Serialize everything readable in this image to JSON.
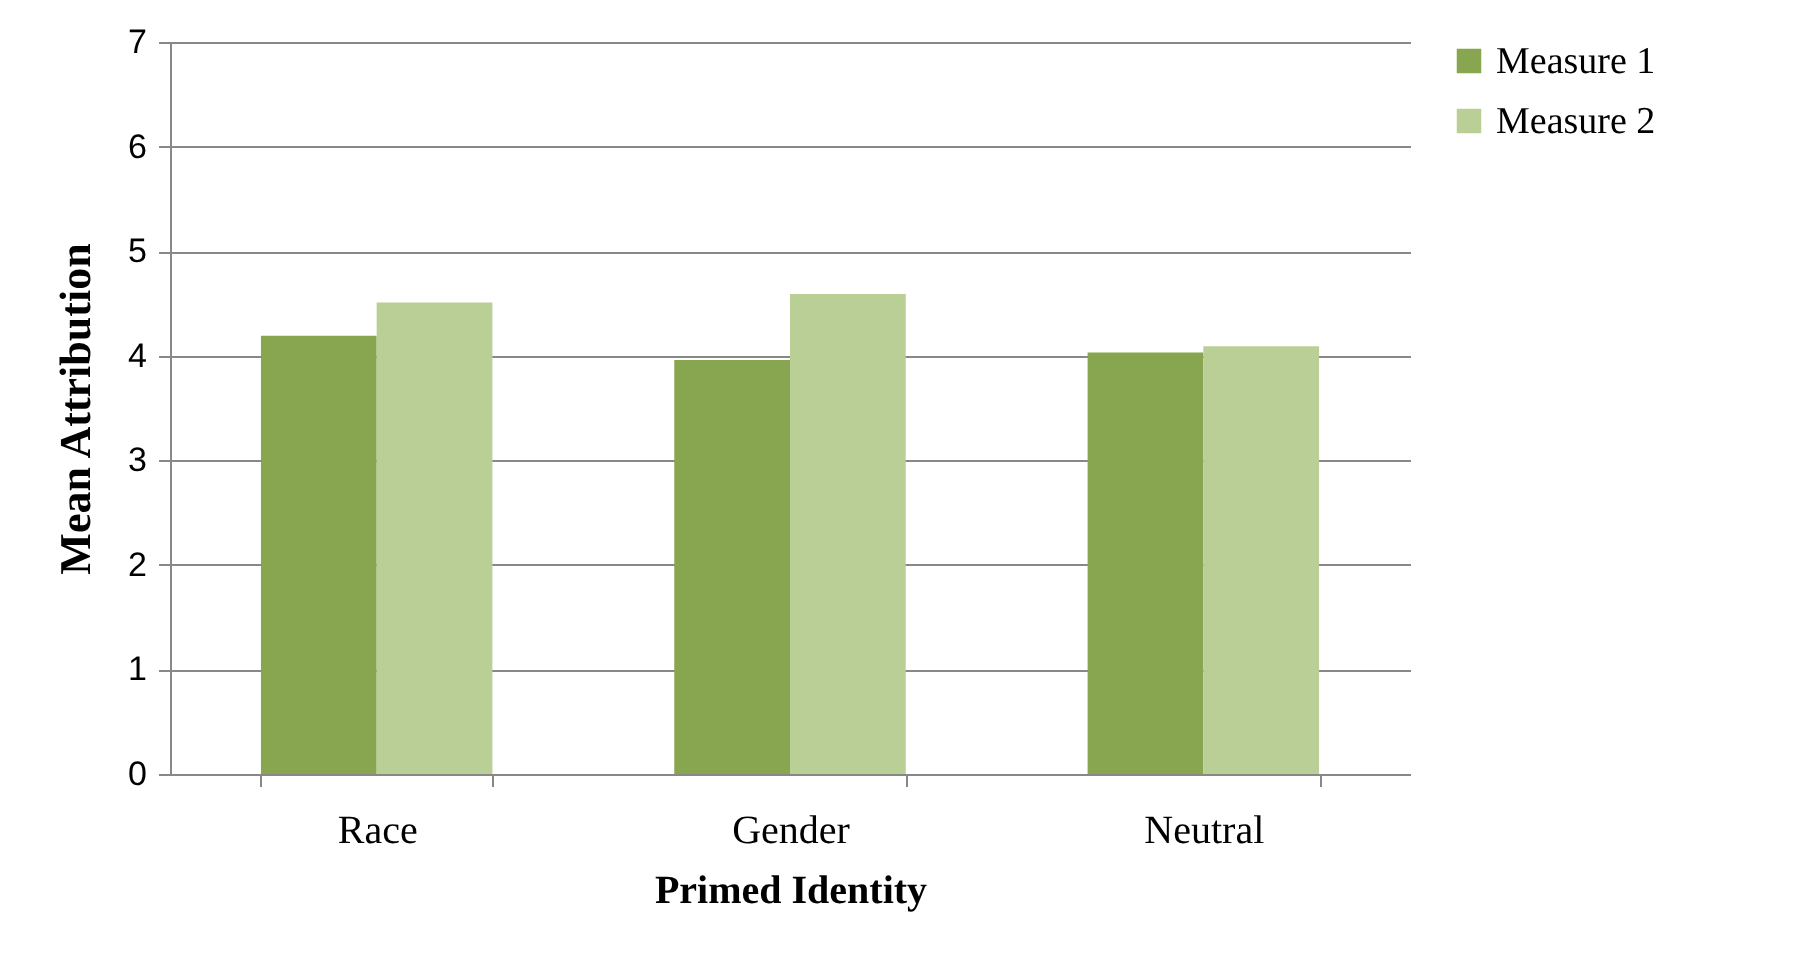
{
  "chart_data": {
    "type": "bar",
    "xlabel": "Primed Identity",
    "ylabel": "Mean Attribution",
    "categories": [
      "Race",
      "Gender",
      "Neutral"
    ],
    "series": [
      {
        "name": "Measure 1",
        "color": "#88a54f",
        "values": [
          4.19,
          3.96,
          4.03
        ]
      },
      {
        "name": "Measure 2",
        "color": "#b9cf96",
        "values": [
          4.51,
          4.59,
          4.09
        ]
      }
    ],
    "ylim": [
      0,
      7
    ],
    "yticks": [
      0,
      1,
      2,
      3,
      4,
      5,
      6,
      7
    ],
    "grid": "y",
    "legend": "right"
  }
}
